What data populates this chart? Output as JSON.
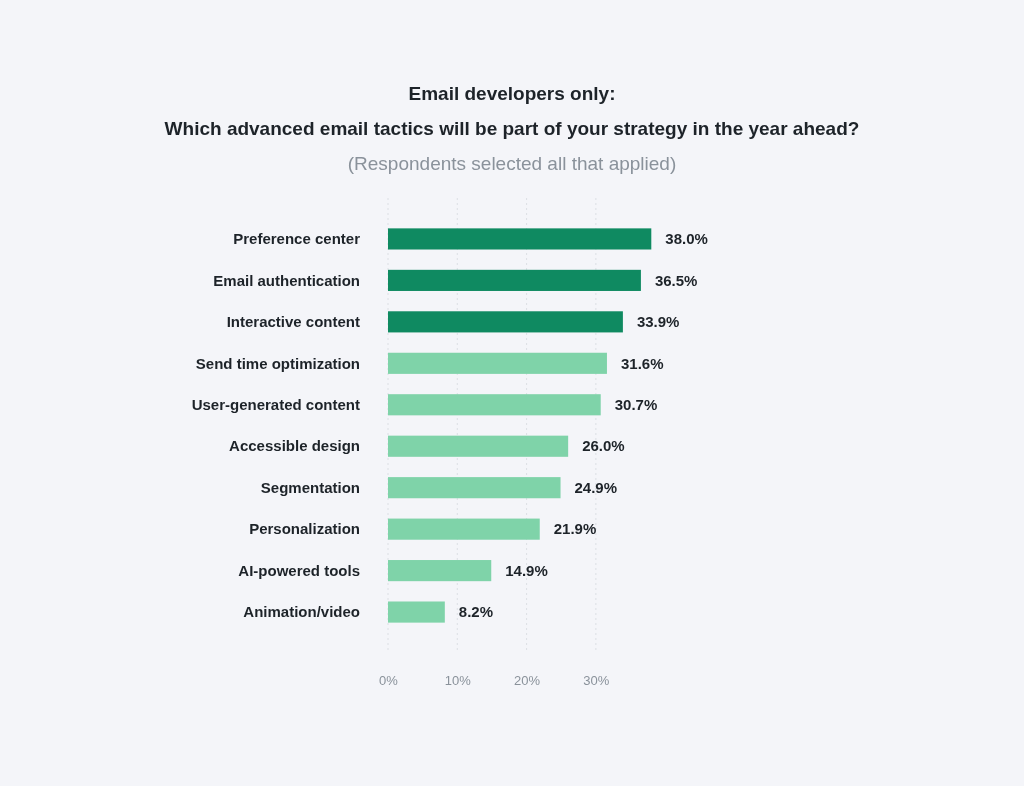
{
  "chart_data": {
    "type": "bar",
    "orientation": "horizontal",
    "title": "Email developers only:\nWhich advanced email tactics will be part of your strategy in the year ahead?",
    "subtitle": "(Respondents selected all that applied)",
    "categories": [
      "Preference center",
      "Email authentication",
      "Interactive content",
      "Send time optimization",
      "User-generated content",
      "Accessible design",
      "Segmentation",
      "Personalization",
      "AI-powered tools",
      "Animation/video"
    ],
    "values": [
      38.0,
      36.5,
      33.9,
      31.6,
      30.7,
      26.0,
      24.9,
      21.9,
      14.9,
      8.2
    ],
    "colors": [
      "#0f8a61",
      "#0f8a61",
      "#0f8a61",
      "#7fd3a9",
      "#7fd3a9",
      "#7fd3a9",
      "#7fd3a9",
      "#7fd3a9",
      "#7fd3a9",
      "#7fd3a9"
    ],
    "value_labels": [
      "38.0%",
      "36.5%",
      "33.9%",
      "31.6%",
      "30.7%",
      "26.0%",
      "24.9%",
      "21.9%",
      "14.9%",
      "8.2%"
    ],
    "xlim": [
      0,
      38
    ],
    "xticks": [
      {
        "value": 0,
        "label": "0%"
      },
      {
        "value": 10,
        "label": "10%"
      },
      {
        "value": 20,
        "label": "20%"
      },
      {
        "value": 30,
        "label": "30%"
      }
    ],
    "grid": "x"
  }
}
